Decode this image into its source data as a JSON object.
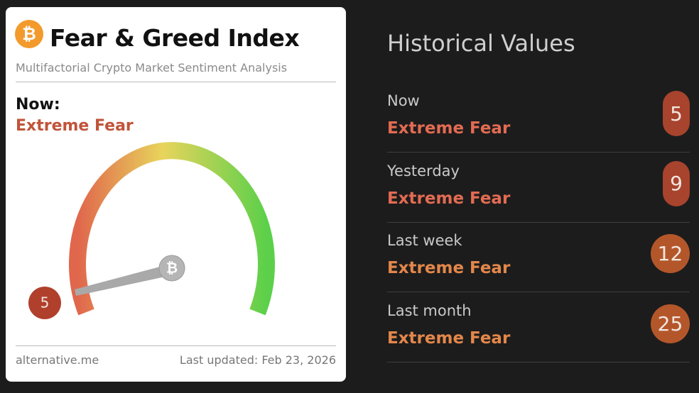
{
  "card": {
    "logo_symbol": "₿",
    "title": "Fear & Greed Index",
    "subtitle": "Multifactorial Crypto Market Sentiment Analysis",
    "now_label": "Now:",
    "classification": "Extreme Fear",
    "value": 5,
    "source": "alternative.me",
    "last_updated": "Last updated: Feb 23, 2026"
  },
  "history": {
    "title": "Historical Values",
    "rows": [
      {
        "label": "Now",
        "classification": "Extreme Fear",
        "value": 5
      },
      {
        "label": "Yesterday",
        "classification": "Extreme Fear",
        "value": 9
      },
      {
        "label": "Last week",
        "classification": "Extreme Fear",
        "value": 12
      },
      {
        "label": "Last month",
        "classification": "Extreme Fear",
        "value": 25
      }
    ]
  }
}
